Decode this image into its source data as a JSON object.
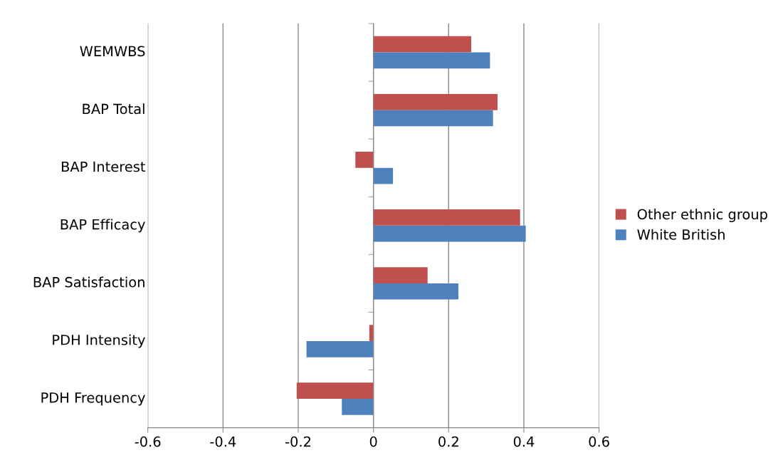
{
  "chart_data": {
    "type": "bar",
    "orientation": "horizontal",
    "categories": [
      "WEMWBS",
      "BAP Total",
      "BAP Interest",
      "BAP Efficacy",
      "BAP Satisfaction",
      "PDH Intensity",
      "PDH Frequency"
    ],
    "series": [
      {
        "name": "Other ethnic group",
        "color": "#c0504d",
        "values": [
          0.26,
          0.33,
          -0.048,
          0.39,
          0.144,
          -0.011,
          -0.204
        ]
      },
      {
        "name": "White British",
        "color": "#4f81bd",
        "values": [
          0.31,
          0.318,
          0.052,
          0.405,
          0.226,
          -0.178,
          -0.084
        ]
      }
    ],
    "xlim": [
      -0.6,
      0.6
    ],
    "xticks": [
      -0.6,
      -0.4,
      -0.2,
      0,
      0.2,
      0.4,
      0.6
    ],
    "grid": "x",
    "legend": "right"
  }
}
